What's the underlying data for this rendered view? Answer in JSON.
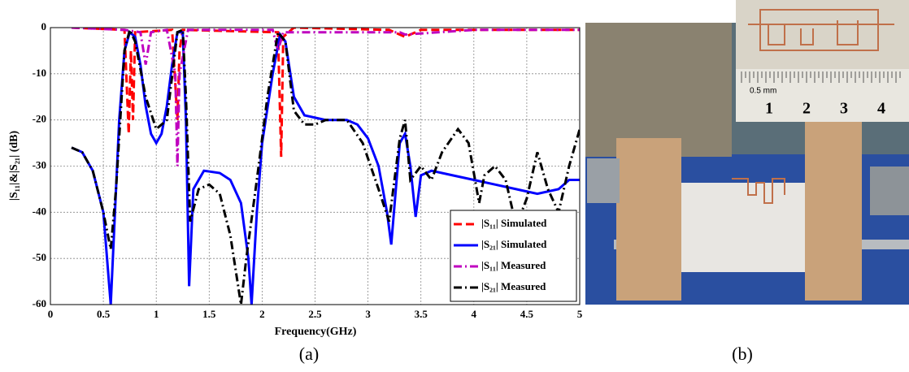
{
  "chart_data": {
    "type": "line",
    "xlabel": "Frequency(GHz)",
    "ylabel": "|S₁₁|&|S₂₁| (dB)",
    "xlim": [
      0,
      5
    ],
    "ylim": [
      -60,
      0
    ],
    "xticks": [
      0,
      0.5,
      1,
      1.5,
      2,
      2.5,
      3,
      3.5,
      4,
      4.5,
      5
    ],
    "yticks": [
      -60,
      -50,
      -40,
      -30,
      -20,
      -10,
      0
    ],
    "grid": true,
    "legend": "lower right",
    "series": [
      {
        "name": "|S₁₁| Simulated",
        "color": "#ff0000",
        "style": "dashed",
        "x": [
          0.2,
          0.7,
          0.74,
          0.76,
          0.78,
          0.8,
          1.15,
          1.2,
          1.22,
          1.25,
          2.15,
          2.18,
          2.2,
          2.3,
          3.2,
          3.35,
          3.5,
          4.0,
          5.0
        ],
        "values": [
          0,
          -0.5,
          -23,
          -5,
          -20,
          -1,
          -0.5,
          -20,
          -5,
          -0.5,
          -1,
          -28,
          -2,
          0,
          -0.5,
          -2,
          -0.5,
          -0.5,
          -0.5
        ]
      },
      {
        "name": "|S₂₁| Simulated",
        "color": "#0000ff",
        "style": "solid",
        "x": [
          0.2,
          0.3,
          0.4,
          0.5,
          0.57,
          0.6,
          0.65,
          0.7,
          0.75,
          0.8,
          0.85,
          0.9,
          0.95,
          1.0,
          1.05,
          1.1,
          1.15,
          1.2,
          1.25,
          1.28,
          1.31,
          1.35,
          1.45,
          1.6,
          1.7,
          1.8,
          1.87,
          1.9,
          1.95,
          2.0,
          2.1,
          2.17,
          2.22,
          2.3,
          2.4,
          2.6,
          2.8,
          2.9,
          3.0,
          3.1,
          3.18,
          3.22,
          3.27,
          3.3,
          3.35,
          3.4,
          3.45,
          3.5,
          3.6,
          3.8,
          4.0,
          4.2,
          4.4,
          4.6,
          4.8,
          4.9,
          5.0
        ],
        "values": [
          -26,
          -27,
          -31,
          -40,
          -60,
          -45,
          -20,
          -5,
          -1,
          -2,
          -8,
          -17,
          -23,
          -25,
          -23,
          -17,
          -8,
          -1,
          -1,
          -20,
          -56,
          -35,
          -31,
          -31.5,
          -33,
          -38,
          -50,
          -60,
          -40,
          -25,
          -10,
          -1.5,
          -3,
          -15,
          -19,
          -20,
          -20,
          -21,
          -24,
          -30,
          -40,
          -47,
          -33,
          -25,
          -23,
          -30,
          -41,
          -32,
          -31,
          -32,
          -33,
          -34,
          -35,
          -36,
          -35,
          -33,
          -33
        ]
      },
      {
        "name": "|S₁₁| Measured",
        "color": "#bf00bf",
        "style": "dashdot",
        "x": [
          0.2,
          0.7,
          0.85,
          0.9,
          0.95,
          1.1,
          1.18,
          1.2,
          1.22,
          1.3,
          2.1,
          2.15,
          2.2,
          3.3,
          3.35,
          4.0,
          5.0
        ],
        "values": [
          0,
          -0.5,
          -1,
          -8,
          -1,
          -0.5,
          -10,
          -30,
          -10,
          -0.5,
          -0.5,
          -5,
          -1,
          -1,
          -1.5,
          -0.5,
          -0.5
        ]
      },
      {
        "name": "|S₂₁| Measured",
        "color": "#000000",
        "style": "dashdot",
        "x": [
          0.2,
          0.3,
          0.4,
          0.5,
          0.57,
          0.62,
          0.7,
          0.75,
          0.8,
          0.9,
          1.0,
          1.1,
          1.2,
          1.25,
          1.28,
          1.32,
          1.4,
          1.5,
          1.6,
          1.7,
          1.8,
          1.85,
          1.95,
          2.05,
          2.15,
          2.22,
          2.3,
          2.4,
          2.5,
          2.6,
          2.8,
          2.95,
          3.1,
          3.2,
          3.3,
          3.35,
          3.4,
          3.5,
          3.6,
          3.7,
          3.85,
          3.95,
          4.05,
          4.1,
          4.2,
          4.3,
          4.4,
          4.5,
          4.6,
          4.7,
          4.8,
          4.9,
          5.0
        ],
        "values": [
          -26,
          -27,
          -31,
          -40,
          -48,
          -35,
          -5,
          -0.5,
          -3,
          -15,
          -22,
          -20,
          -1,
          -0.5,
          -15,
          -42,
          -35,
          -34,
          -36,
          -45,
          -60,
          -50,
          -33,
          -15,
          -1,
          -3,
          -18,
          -21,
          -21,
          -20,
          -20,
          -25,
          -35,
          -42,
          -24,
          -20,
          -33,
          -30,
          -33,
          -27,
          -22,
          -25,
          -38,
          -32,
          -30,
          -33,
          -43,
          -37,
          -27,
          -35,
          -40,
          -30,
          -22
        ]
      }
    ]
  },
  "photo": {
    "ruler_unit": "0.5 mm",
    "ruler_labels": [
      "1",
      "2",
      "3",
      "4"
    ]
  },
  "captions": [
    "(a)",
    "(b)"
  ]
}
